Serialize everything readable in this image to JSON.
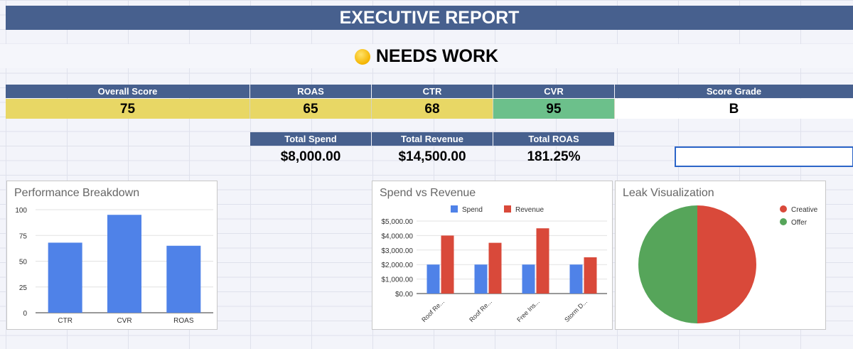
{
  "header": {
    "title": "EXECUTIVE REPORT"
  },
  "status": {
    "text": "NEEDS WORK",
    "icon": "yellow-circle-icon"
  },
  "scores": {
    "overall_label": "Overall Score",
    "overall_value": "75",
    "roas_label": "ROAS",
    "roas_value": "65",
    "ctr_label": "CTR",
    "ctr_value": "68",
    "cvr_label": "CVR",
    "cvr_value": "95",
    "grade_label": "Score Grade",
    "grade_value": "B"
  },
  "totals": {
    "spend_label": "Total Spend",
    "spend_value": "$8,000.00",
    "revenue_label": "Total Revenue",
    "revenue_value": "$14,500.00",
    "roas_label": "Total ROAS",
    "roas_value": "181.25%"
  },
  "colors": {
    "header_band": "#47608e",
    "yellow_cell": "#e8d765",
    "green_cell": "#6cc08b",
    "blue_series": "#4f82e8",
    "red_series": "#d9493a",
    "green_series": "#56a55a"
  },
  "chart_data": [
    {
      "type": "bar",
      "title": "Performance Breakdown",
      "categories": [
        "CTR",
        "CVR",
        "ROAS"
      ],
      "values": [
        68,
        95,
        65
      ],
      "ylim": [
        0,
        100
      ],
      "yticks": [
        0,
        25,
        50,
        75,
        100
      ],
      "legend": "none"
    },
    {
      "type": "bar",
      "title": "Spend vs Revenue",
      "categories": [
        "Roof Re...",
        "Roof Re...",
        "Free Ins...",
        "Storm D..."
      ],
      "series": [
        {
          "name": "Spend",
          "values": [
            2000,
            2000,
            2000,
            2000
          ]
        },
        {
          "name": "Revenue",
          "values": [
            4000,
            3500,
            4500,
            2500
          ]
        }
      ],
      "ylim": [
        0,
        5000
      ],
      "yticks": [
        "$0.00",
        "$1,000.00",
        "$2,000.00",
        "$3,000.00",
        "$4,000.00",
        "$5,000.00"
      ],
      "legend": "top"
    },
    {
      "type": "pie",
      "title": "Leak Visualization",
      "categories": [
        "Creative",
        "Offer"
      ],
      "values": [
        50,
        50
      ],
      "legend": "right"
    }
  ]
}
